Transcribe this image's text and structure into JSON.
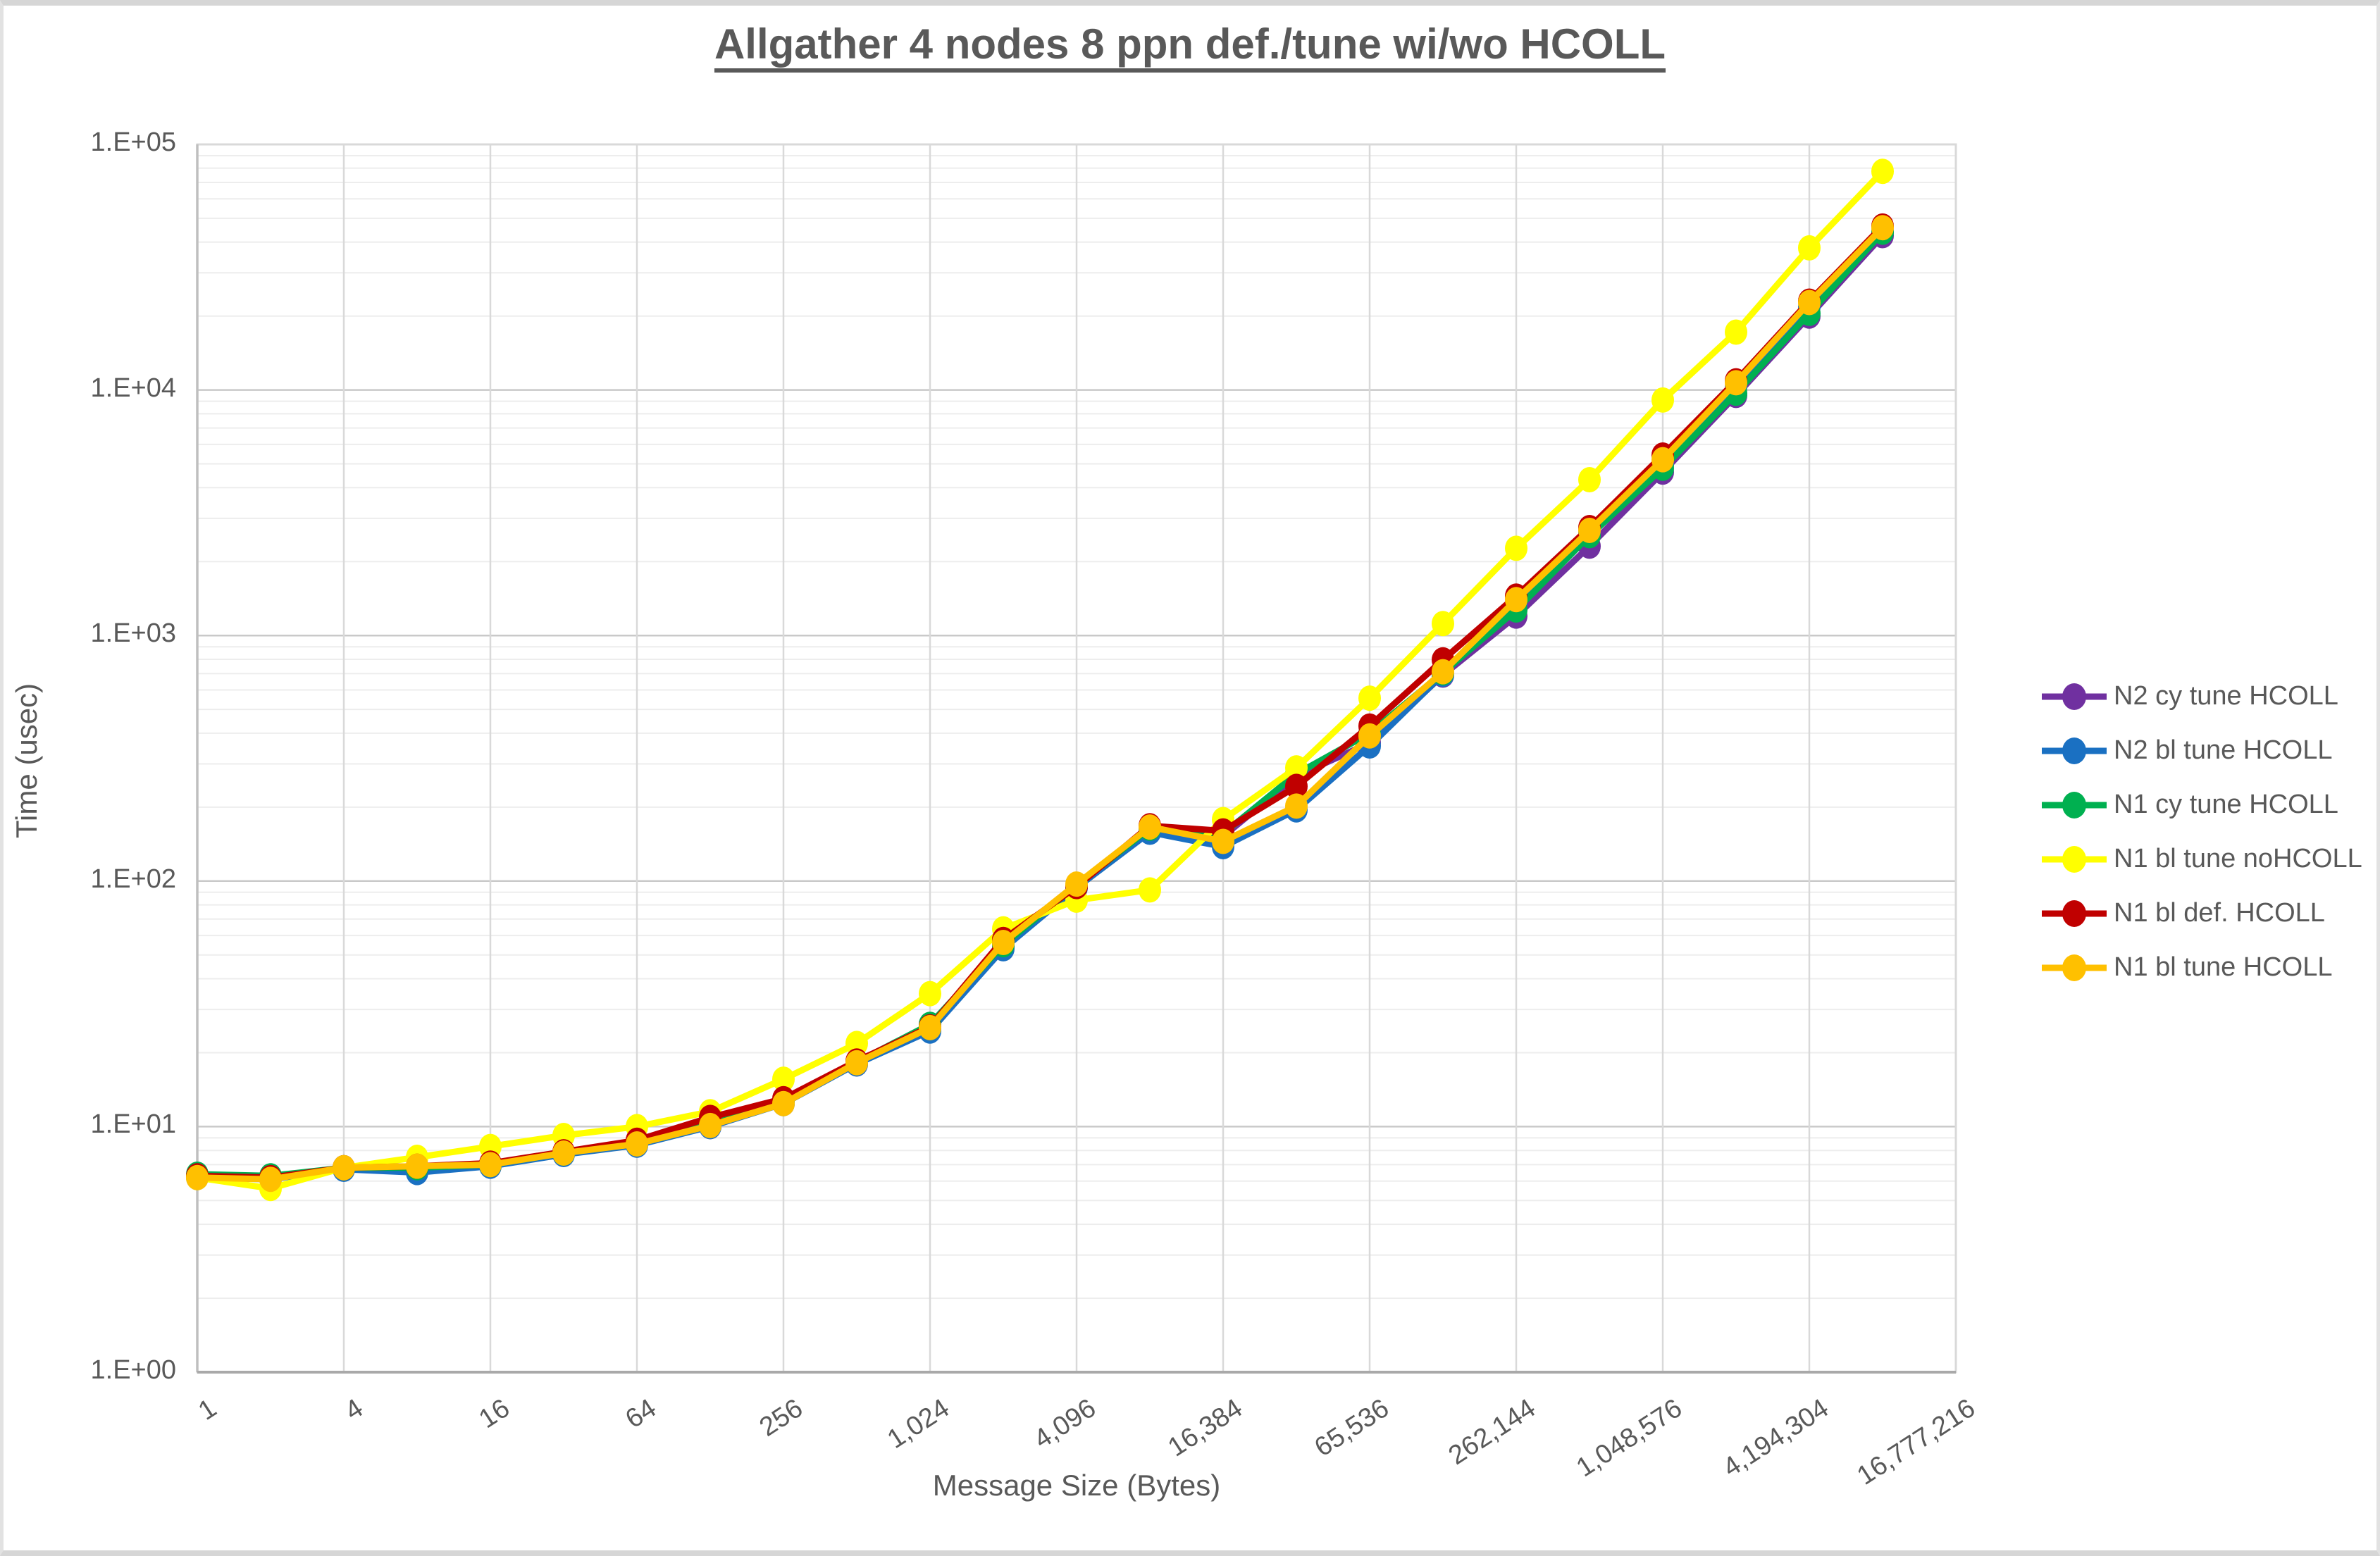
{
  "title": "Allgather 4 nodes 8 ppn def./tune wi/wo HCOLL",
  "chart_data": {
    "type": "line",
    "title": "Allgather 4 nodes 8 ppn def./tune wi/wo HCOLL",
    "xlabel": "Message Size (Bytes)",
    "ylabel": "Time (usec)",
    "x_scale": "log2",
    "y_scale": "log10",
    "ylim": [
      1,
      100000
    ],
    "y_tick_labels": [
      "1.E+00",
      "1.E+01",
      "1.E+02",
      "1.E+03",
      "1.E+04",
      "1.E+05"
    ],
    "x_tick_labels": [
      "1",
      "4",
      "16",
      "64",
      "256",
      "1,024",
      "4,096",
      "16,384",
      "65,536",
      "262,144",
      "1,048,576",
      "4,194,304",
      "16,777,216"
    ],
    "categories": [
      1,
      2,
      4,
      8,
      16,
      32,
      64,
      128,
      256,
      512,
      1024,
      2048,
      4096,
      8192,
      16384,
      32768,
      65536,
      131072,
      262144,
      524288,
      1048576,
      2097152,
      4194304,
      8388608
    ],
    "legend_position": "right",
    "grid": {
      "major": true,
      "minor": true
    },
    "series": [
      {
        "name": "N2 cy tune HCOLL",
        "color": "#7030A0",
        "values": [
          6.3,
          6.2,
          6.8,
          6.8,
          7.0,
          7.8,
          8.5,
          10.0,
          12.5,
          18.0,
          25.0,
          54,
          95,
          162,
          152,
          268,
          365,
          690,
          1200,
          2310,
          4630,
          9500,
          20000,
          42500
        ]
      },
      {
        "name": "N2 bl tune HCOLL",
        "color": "#1A70C2",
        "values": [
          6.2,
          6.1,
          6.7,
          6.5,
          6.9,
          7.7,
          8.4,
          10.0,
          12.4,
          18.0,
          24.5,
          53,
          94,
          158,
          138,
          195,
          355,
          695,
          1350,
          2620,
          4950,
          10300,
          21800,
          44000
        ]
      },
      {
        "name": "N1 cy tune HCOLL",
        "color": "#00B050",
        "values": [
          6.4,
          6.3,
          6.8,
          6.8,
          7.0,
          7.8,
          8.6,
          10.2,
          12.6,
          18.3,
          26.1,
          55,
          96,
          164,
          156,
          273,
          400,
          705,
          1270,
          2550,
          4800,
          9700,
          20500,
          43900
        ]
      },
      {
        "name": "N1 bl tune noHCOLL",
        "color": "#FFFF00",
        "values": [
          6.2,
          5.6,
          6.8,
          7.5,
          8.3,
          9.2,
          10.0,
          11.5,
          15.6,
          21.8,
          34.8,
          63.9,
          83.6,
          92,
          178,
          289,
          556,
          1119,
          2265,
          4310,
          9100,
          17200,
          37900,
          77700
        ]
      },
      {
        "name": "N1 bl def. HCOLL",
        "color": "#C00000",
        "values": [
          6.3,
          6.2,
          6.8,
          6.9,
          7.1,
          7.9,
          8.8,
          10.9,
          13.0,
          18.5,
          25.5,
          57.8,
          95,
          168,
          160,
          243,
          428,
          796,
          1447,
          2750,
          5430,
          10900,
          23000,
          46500
        ]
      },
      {
        "name": "N1 bl tune HCOLL",
        "color": "#FFC000",
        "values": [
          6.2,
          6.1,
          6.8,
          6.9,
          7.0,
          7.8,
          8.5,
          10.1,
          12.4,
          18.2,
          25.3,
          56.2,
          97.2,
          166,
          145,
          202,
          390,
          712,
          1400,
          2680,
          5200,
          10700,
          22700,
          45800
        ]
      }
    ]
  }
}
